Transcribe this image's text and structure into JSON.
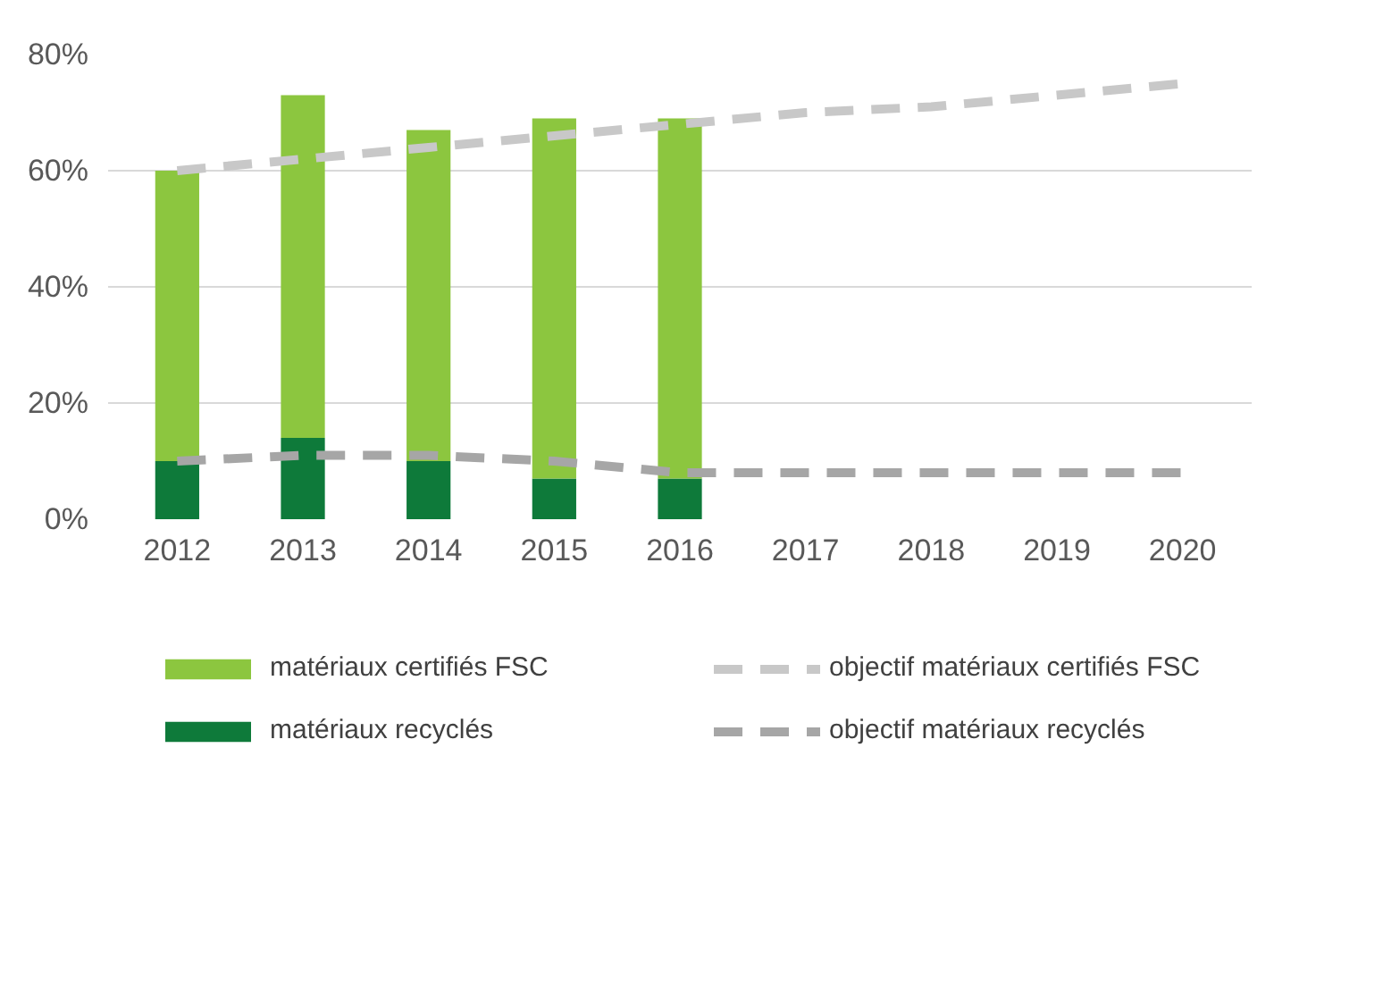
{
  "chart_data": {
    "type": "bar",
    "stacked": true,
    "categories": [
      "2012",
      "2013",
      "2014",
      "2015",
      "2016",
      "2017",
      "2018",
      "2019",
      "2020"
    ],
    "series": [
      {
        "name": "matériaux recyclés",
        "color": "#0e7a3a",
        "values": [
          10,
          14,
          10,
          7,
          7,
          null,
          null,
          null,
          null
        ]
      },
      {
        "name": "matériaux certifiés FSC",
        "color": "#8cc63f",
        "values": [
          50,
          59,
          57,
          62,
          62,
          null,
          null,
          null,
          null
        ]
      },
      {
        "name": "objectif matériaux certifiés FSC",
        "type": "line",
        "line_style": "dashed",
        "color": "#c8c8c8",
        "values": [
          60,
          62,
          64,
          66,
          68,
          70,
          71,
          73,
          75
        ]
      },
      {
        "name": "objectif matériaux recyclés",
        "type": "line",
        "line_style": "dashed",
        "color": "#a6a6a6",
        "values": [
          10,
          11,
          11,
          10,
          8,
          8,
          8,
          8,
          8
        ]
      }
    ],
    "ylim": [
      0,
      80
    ],
    "yticks": [
      {
        "value": 0,
        "label": "0%"
      },
      {
        "value": 20,
        "label": "20%"
      },
      {
        "value": 40,
        "label": "40%"
      },
      {
        "value": 60,
        "label": "60%"
      },
      {
        "value": 80,
        "label": "80%"
      }
    ],
    "grid": "y",
    "legend": "bottom"
  }
}
